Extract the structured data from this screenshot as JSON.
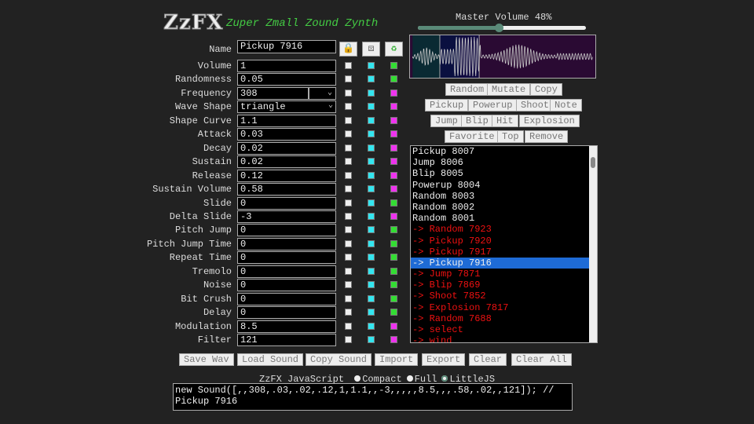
{
  "app": {
    "logo": "ZzFX",
    "tagline": "Zuper Zmall Zound Zynth"
  },
  "master_volume": {
    "label": "Master Volume 48%",
    "value_percent": 48
  },
  "name": {
    "label": "Name",
    "value": "Pickup 7916"
  },
  "icons": [
    "lock-icon",
    "dice-icon",
    "recycle-icon"
  ],
  "colors": {
    "cyan": "#33e6f0",
    "green": "#33dd33",
    "magenta": "#ee33ee",
    "selected": "#1e6bd6",
    "history": "#ee1111"
  },
  "params": [
    {
      "label": "Volume",
      "value": "1",
      "mode": "green"
    },
    {
      "label": "Randomness",
      "value": "0.05",
      "mode": "green"
    },
    {
      "label": "Frequency",
      "value": "308",
      "mode": "magenta",
      "select": true
    },
    {
      "label": "Wave Shape",
      "value": "triangle",
      "mode": "magenta",
      "select": true
    },
    {
      "label": "Shape Curve",
      "value": "1.1",
      "mode": "magenta"
    },
    {
      "label": "Attack",
      "value": "0.03",
      "mode": "magenta"
    },
    {
      "label": "Decay",
      "value": "0.02",
      "mode": "magenta"
    },
    {
      "label": "Sustain",
      "value": "0.02",
      "mode": "magenta"
    },
    {
      "label": "Release",
      "value": "0.12",
      "mode": "magenta"
    },
    {
      "label": "Sustain Volume",
      "value": "0.58",
      "mode": "magenta"
    },
    {
      "label": "Slide",
      "value": "0",
      "mode": "green"
    },
    {
      "label": "Delta Slide",
      "value": "-3",
      "mode": "magenta"
    },
    {
      "label": "Pitch Jump",
      "value": "0",
      "mode": "green"
    },
    {
      "label": "Pitch Jump Time",
      "value": "0",
      "mode": "green"
    },
    {
      "label": "Repeat Time",
      "value": "0",
      "mode": "green"
    },
    {
      "label": "Tremolo",
      "value": "0",
      "mode": "green"
    },
    {
      "label": "Noise",
      "value": "0",
      "mode": "green"
    },
    {
      "label": "Bit Crush",
      "value": "0",
      "mode": "green"
    },
    {
      "label": "Delay",
      "value": "0",
      "mode": "green"
    },
    {
      "label": "Modulation",
      "value": "8.5",
      "mode": "magenta"
    },
    {
      "label": "Filter",
      "value": "121",
      "mode": "magenta"
    }
  ],
  "action_buttons": [
    [
      "Random",
      "Mutate",
      "Copy"
    ],
    [
      "Pickup",
      "Powerup",
      "Shoot",
      "Note"
    ],
    [
      "Jump",
      "Blip",
      "Hit",
      "Explosion"
    ],
    [
      "Favorite",
      "Top",
      "Remove"
    ]
  ],
  "sound_list": [
    {
      "label": "Pickup 8007",
      "type": "new"
    },
    {
      "label": "Jump 8006",
      "type": "new"
    },
    {
      "label": "Blip 8005",
      "type": "new"
    },
    {
      "label": "Powerup 8004",
      "type": "new"
    },
    {
      "label": "Random 8003",
      "type": "new"
    },
    {
      "label": "Random 8002",
      "type": "new"
    },
    {
      "label": "Random 8001",
      "type": "new"
    },
    {
      "label": "-> Random 7923",
      "type": "saved"
    },
    {
      "label": "-> Pickup 7920",
      "type": "saved"
    },
    {
      "label": "-> Pickup 7917",
      "type": "saved"
    },
    {
      "label": "-> Pickup 7916",
      "type": "selected"
    },
    {
      "label": "-> Jump 7871",
      "type": "saved"
    },
    {
      "label": "-> Blip 7869",
      "type": "saved"
    },
    {
      "label": "-> Shoot 7852",
      "type": "saved"
    },
    {
      "label": "-> Explosion 7817",
      "type": "saved"
    },
    {
      "label": "-> Random 7688",
      "type": "saved"
    },
    {
      "label": "-> select",
      "type": "saved"
    },
    {
      "label": "-> wind",
      "type": "saved"
    }
  ],
  "bottom_buttons": [
    "Save Wav",
    "Load Sound",
    "Copy Sound",
    "Import",
    "Export",
    "Clear",
    "Clear All"
  ],
  "code": {
    "label": "ZzFX JavaScript",
    "options": [
      "Compact",
      "Full",
      "LittleJS"
    ],
    "selected": "LittleJS",
    "text": "new Sound([,,308,.03,.02,.12,1,1.1,,-3,,,,,8.5,,,.58,.02,,121]); // Pickup 7916"
  }
}
